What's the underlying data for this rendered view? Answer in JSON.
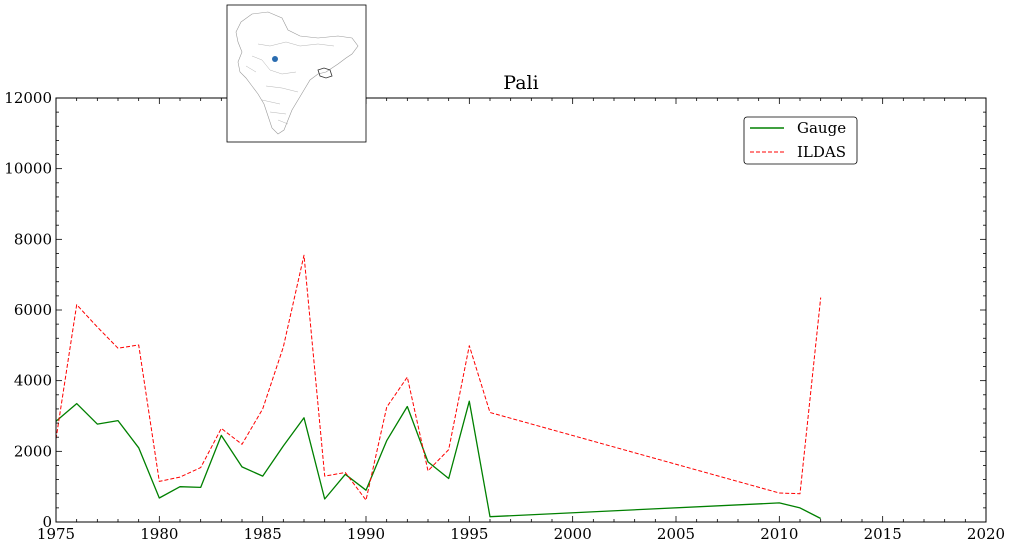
{
  "chart_data": {
    "type": "line",
    "title": "Pali",
    "xlabel": "",
    "ylabel": "",
    "xlim": [
      1975,
      2020
    ],
    "ylim": [
      0,
      12000
    ],
    "x_ticks": [
      "1975",
      "1980",
      "1985",
      "1990",
      "1995",
      "2000",
      "2005",
      "2010",
      "2015",
      "2020"
    ],
    "y_ticks": [
      "0",
      "2000",
      "4000",
      "6000",
      "8000",
      "10000",
      "12000"
    ],
    "grid": false,
    "legend_position": "upper-right",
    "inset": "map of South Asia with a blue point marking the station location",
    "series": [
      {
        "name": "Gauge",
        "color": "#008000",
        "style": "solid",
        "x": [
          1975,
          1976,
          1977,
          1978,
          1979,
          1980,
          1981,
          1982,
          1983,
          1984,
          1985,
          1986,
          1987,
          1988,
          1989,
          1990,
          1991,
          1992,
          1993,
          1994,
          1995,
          1996,
          2010,
          2011,
          2012
        ],
        "y": [
          2850,
          3350,
          2770,
          2870,
          2100,
          680,
          1000,
          980,
          2450,
          1560,
          1300,
          2150,
          2950,
          650,
          1350,
          900,
          2300,
          3270,
          1700,
          1230,
          3420,
          150,
          540,
          400,
          100
        ]
      },
      {
        "name": "ILDAS",
        "color": "#ff0000",
        "style": "dashed",
        "x": [
          1975,
          1976,
          1977,
          1978,
          1979,
          1980,
          1981,
          1982,
          1983,
          1984,
          1985,
          1986,
          1987,
          1988,
          1989,
          1990,
          1991,
          1992,
          1993,
          1994,
          1995,
          1996,
          2010,
          2011,
          2012
        ],
        "y": [
          2350,
          6150,
          5520,
          4920,
          5010,
          1150,
          1270,
          1540,
          2650,
          2200,
          3200,
          4950,
          7550,
          1300,
          1400,
          620,
          3250,
          4100,
          1450,
          2050,
          4990,
          3100,
          820,
          800,
          6350
        ]
      }
    ]
  }
}
